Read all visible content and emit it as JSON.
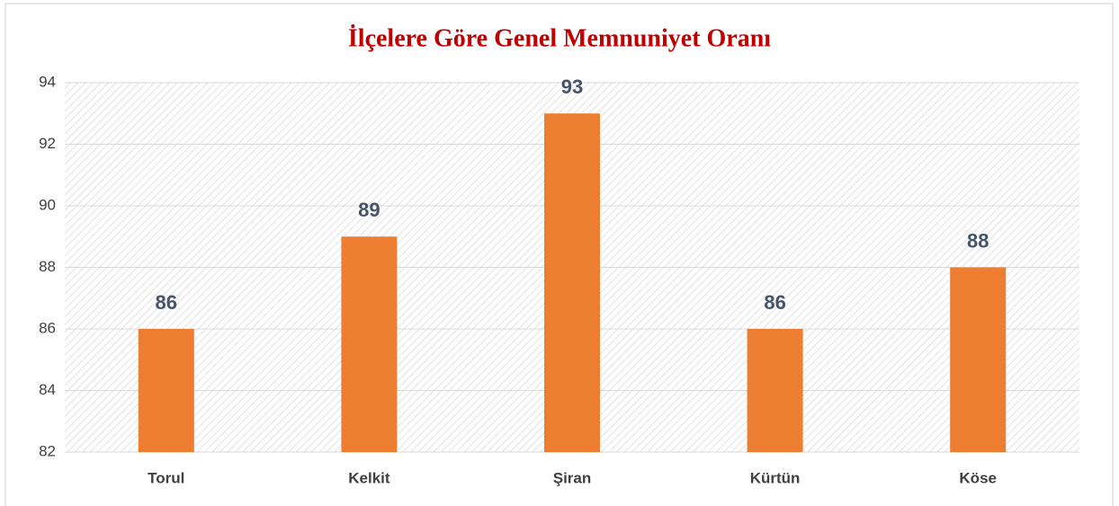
{
  "chart_data": {
    "type": "bar",
    "title": "İlçelere Göre Genel Memnuniyet Oranı",
    "categories": [
      "Torul",
      "Kelkit",
      "Şiran",
      "Kürtün",
      "Köse"
    ],
    "values": [
      86,
      89,
      93,
      86,
      88
    ],
    "color": "#ed7d31",
    "ylim": [
      82,
      94
    ],
    "yticks": [
      82,
      84,
      86,
      88,
      90,
      92,
      94
    ],
    "grid": true
  }
}
